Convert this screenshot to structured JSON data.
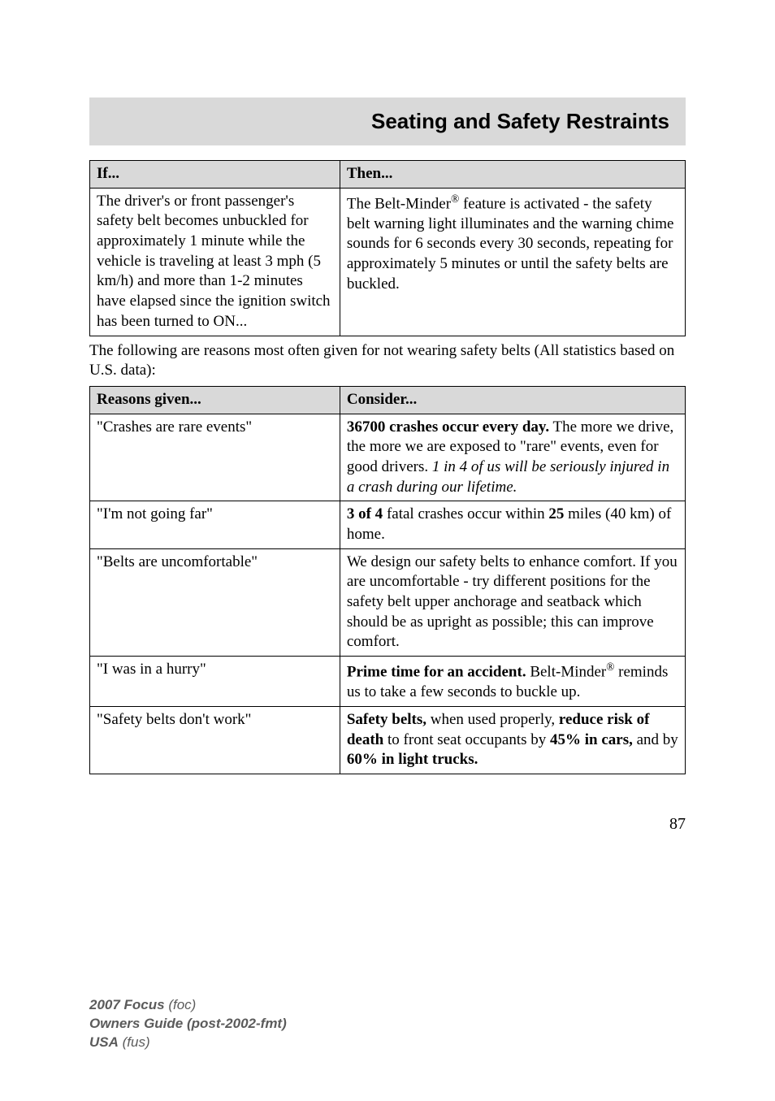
{
  "title": "Seating and Safety Restraints",
  "table1": {
    "header_if": "If...",
    "header_then": "Then...",
    "row1_if": "The driver's or front passenger's safety belt becomes unbuckled for approximately 1 minute while the vehicle is traveling at least 3 mph (5 km/h) and more than 1-2 minutes have elapsed since the ignition switch has been turned to ON...",
    "row1_then_a": "The Belt-Minder",
    "row1_then_b": " feature is activated - the safety belt warning light illuminates and the warning chime sounds for 6 seconds every 30 seconds, repeating for approximately 5 minutes or until the safety belts are buckled."
  },
  "intertext": "The following are reasons most often given for not wearing safety belts (All statistics based on U.S. data):",
  "table2": {
    "header_reasons": "Reasons given...",
    "header_consider": "Consider...",
    "r1_reason": "\"Crashes are rare events\"",
    "r1_c_a": "36700 crashes occur every day.",
    "r1_c_b": " The more we drive, the more we are exposed to \"rare\" events, even for good drivers. ",
    "r1_c_c": "1 in 4 of us will be seriously injured in a crash during our lifetime.",
    "r2_reason": "\"I'm not going far\"",
    "r2_c_a": "3 of 4",
    "r2_c_b": " fatal crashes occur within ",
    "r2_c_c": "25",
    "r2_c_d": " miles (40 km) of home.",
    "r3_reason": "\"Belts are uncomfortable\"",
    "r3_c": "We design our safety belts to enhance comfort. If you are uncomfortable - try different positions for the safety belt upper anchorage and seatback which should be as upright as possible; this can improve comfort.",
    "r4_reason": "\"I was in a hurry\"",
    "r4_c_a": "Prime time for an accident.",
    "r4_c_b": " Belt-Minder",
    "r4_c_c": " reminds us to take a few seconds to buckle up.",
    "r5_reason": "\"Safety belts don't work\"",
    "r5_c_a": "Safety belts,",
    "r5_c_b": " when used properly, ",
    "r5_c_c": "reduce risk of death",
    "r5_c_d": " to front seat occupants by ",
    "r5_c_e": "45% in cars,",
    "r5_c_f": " and by ",
    "r5_c_g": "60% in light trucks."
  },
  "page_number": "87",
  "footer": {
    "l1a": "2007 Focus",
    "l1b": " (foc)",
    "l2": "Owners Guide (post-2002-fmt)",
    "l3a": "USA",
    "l3b": " (fus)"
  },
  "reg_mark": "®"
}
